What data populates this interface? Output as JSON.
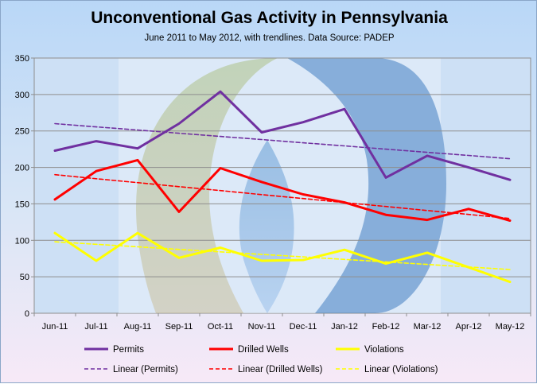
{
  "chart_data": {
    "type": "line",
    "title": "Unconventional Gas Activity in Pennsylvania",
    "subtitle": "June 2011 to May 2012, with trendlines.  Data Source: PADEP",
    "categories": [
      "Jun-11",
      "Jul-11",
      "Aug-11",
      "Sep-11",
      "Oct-11",
      "Nov-11",
      "Dec-11",
      "Jan-12",
      "Feb-12",
      "Mar-12",
      "Apr-12",
      "May-12"
    ],
    "ylim": [
      0,
      350
    ],
    "yticks": [
      "0",
      "50",
      "100",
      "150",
      "200",
      "250",
      "300",
      "350"
    ],
    "grid": true,
    "legend_position": "bottom",
    "series": [
      {
        "name": "Permits",
        "color": "#7030a0",
        "style": "solid",
        "values": [
          223,
          236,
          226,
          260,
          304,
          248,
          262,
          280,
          186,
          216,
          200,
          183
        ]
      },
      {
        "name": "Drilled Wells",
        "color": "#ff0000",
        "style": "solid",
        "values": [
          156,
          195,
          210,
          139,
          199,
          180,
          163,
          152,
          135,
          128,
          143,
          127
        ]
      },
      {
        "name": "Violations",
        "color": "#ffff00",
        "style": "solid",
        "values": [
          110,
          72,
          110,
          76,
          90,
          72,
          73,
          87,
          68,
          83,
          63,
          43
        ]
      },
      {
        "name": "Linear (Permits)",
        "color": "#7030a0",
        "style": "dashed",
        "values": [
          260,
          255.6,
          251.3,
          246.9,
          242.5,
          238.2,
          233.8,
          229.5,
          225.1,
          220.7,
          216.4,
          212
        ]
      },
      {
        "name": "Linear (Drilled Wells)",
        "color": "#ff0000",
        "style": "dashed",
        "values": [
          190,
          184.5,
          179.1,
          173.6,
          168.2,
          162.7,
          157.3,
          151.8,
          146.4,
          140.9,
          135.5,
          130
        ]
      },
      {
        "name": "Linear (Violations)",
        "color": "#ffff00",
        "style": "dashed",
        "values": [
          98,
          94.5,
          91.1,
          87.6,
          84.2,
          80.7,
          77.3,
          73.8,
          70.4,
          66.9,
          63.5,
          60
        ]
      }
    ]
  }
}
